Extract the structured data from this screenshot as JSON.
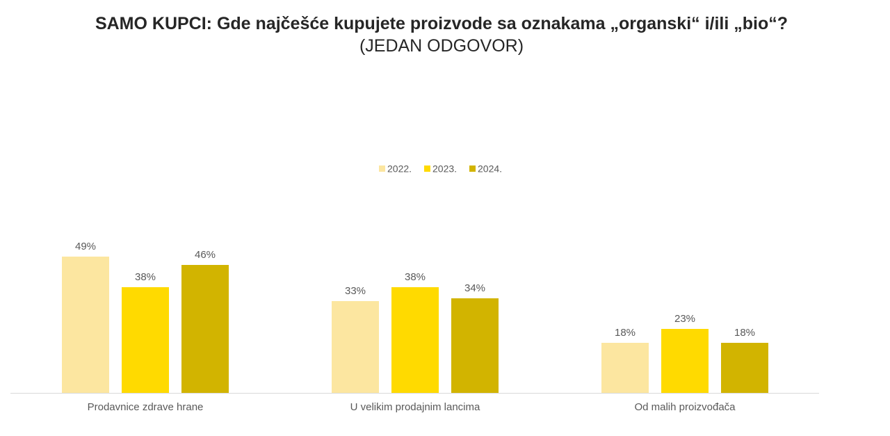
{
  "title": "SAMO KUPCI: Gde najčešće kupujete proizvode sa oznakama „organski“ i/ili „bio“?",
  "subtitle": "(JEDAN ODGOVOR)",
  "chart_data": {
    "type": "bar",
    "title": "SAMO KUPCI: Gde najčešće kupujete proizvode sa oznakama „organski“ i/ili „bio“?",
    "subtitle": "(JEDAN ODGOVOR)",
    "categories": [
      "Prodavnice zdrave hrane",
      "U velikim prodajnim lancima",
      "Od malih proizvođača"
    ],
    "series": [
      {
        "name": "2022.",
        "values": [
          49,
          33,
          18
        ],
        "labels": [
          "49%",
          "33%",
          "18%"
        ],
        "color": "#FCE6A0"
      },
      {
        "name": "2023.",
        "values": [
          38,
          38,
          23
        ],
        "labels": [
          "38%",
          "38%",
          "23%"
        ],
        "color": "#FFDA00"
      },
      {
        "name": "2024.",
        "values": [
          46,
          34,
          18
        ],
        "labels": [
          "46%",
          "34%",
          "18%"
        ],
        "color": "#D2B400"
      }
    ],
    "unit": "%",
    "ylim": [
      0,
      60
    ],
    "grid": false,
    "legend_position": "top-center"
  }
}
